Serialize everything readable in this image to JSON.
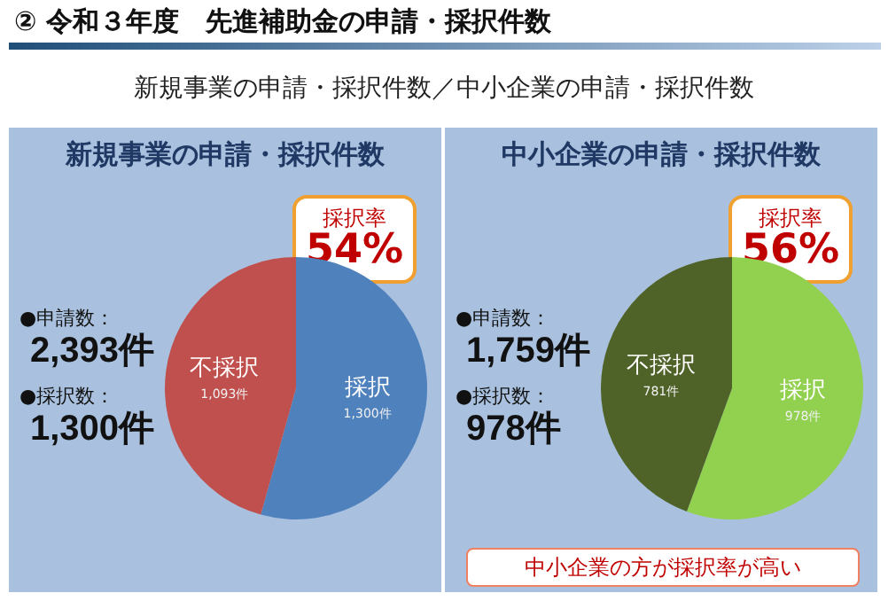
{
  "chart_data": [
    {
      "type": "other",
      "title": "② 令和３年度　先進補助金の申請・採択件数",
      "subtitle": "新規事業の申請・採択件数／中小企業の申請・採択件数"
    },
    {
      "type": "pie",
      "title": "新規事業の申請・採択件数",
      "categories": [
        "採択",
        "不採択"
      ],
      "values": [
        1300,
        1093
      ],
      "colors": [
        "#4f81bd",
        "#c0504d"
      ],
      "value_labels": [
        "1,300件",
        "1,093件"
      ],
      "legend": false,
      "annotations": [
        "●申請数：",
        "2,393件",
        "●採択数：",
        "1,300件",
        "採択率",
        "54%"
      ]
    },
    {
      "type": "pie",
      "title": "中小企業の申請・採択件数",
      "categories": [
        "採択",
        "不採択"
      ],
      "values": [
        978,
        781
      ],
      "colors": [
        "#92d050",
        "#4f6228"
      ],
      "value_labels": [
        "978件",
        "781件"
      ],
      "legend": false,
      "annotations": [
        "●申請数：",
        "1,759件",
        "●採択数：",
        "978件",
        "採択率",
        "56%",
        "中小企業の方が採択率が高い"
      ]
    }
  ]
}
